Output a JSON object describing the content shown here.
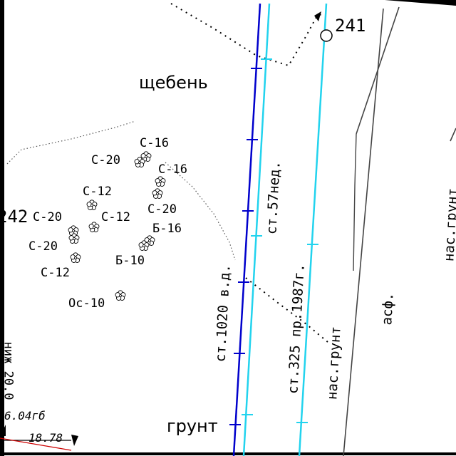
{
  "map": {
    "points": [
      "241",
      "242"
    ],
    "surfaces": {
      "gravel": "щебень",
      "soil": "грунт",
      "bulk_soil": "нас.грунт",
      "bulk_soil_right": "нас.грунт",
      "asphalt": "асф."
    },
    "pipes": {
      "main": "ст.1020 в.д.",
      "second": "ст.57нед.",
      "third": "ст.325 пр.1987г."
    },
    "trees": [
      "С-16",
      "С-20",
      "С-16",
      "С-12",
      "С-20",
      "С-20",
      "С-12",
      "Б-16",
      "С-20",
      "Б-10",
      "С-12",
      "Ос-10"
    ],
    "edge": {
      "elevation": "6.04гб",
      "distance": "18.78",
      "rotated_left": "ниж 20.0"
    },
    "colors": {
      "pipe_blue": "#0000cc",
      "pipe_cyan": "#22d3ee",
      "road_edge": "#444444",
      "survey_red": "#cc0000"
    },
    "icons": [
      "tree-icon",
      "survey-point-icon",
      "triangle-marker-icon"
    ]
  }
}
